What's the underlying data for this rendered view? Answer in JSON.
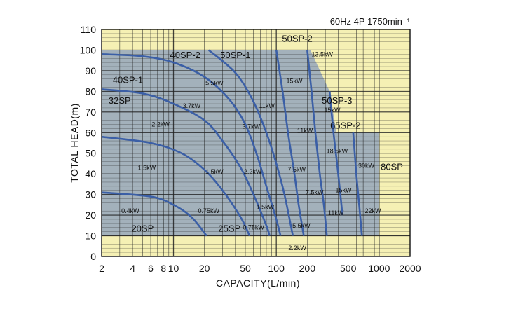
{
  "chart_data": {
    "type": "line",
    "title": "60Hz 4P 1750min⁻¹",
    "xlabel": "CAPACITY(L/min)",
    "ylabel": "TOTAL HEAD(m)",
    "x_scale": "log",
    "xlim": [
      2,
      2000
    ],
    "ylim": [
      0,
      110
    ],
    "x_ticks": [
      2,
      4,
      6,
      8,
      10,
      20,
      50,
      100,
      200,
      500,
      1000,
      2000
    ],
    "x_tick_labels": [
      "2",
      "4",
      "6",
      "8",
      "10",
      "20",
      "50",
      "100",
      "200",
      "500",
      "1000",
      "2000"
    ],
    "y_ticks": [
      0,
      10,
      20,
      30,
      40,
      50,
      60,
      70,
      80,
      90,
      100,
      110
    ],
    "grid": true,
    "colors": {
      "background": "#f5f0b4",
      "operating_region": "#a3b1bb",
      "curve": "#3b5fa6",
      "grid": "#222222"
    },
    "operating_region": [
      {
        "x": 2,
        "y": 100
      },
      {
        "x": 215,
        "y": 100
      },
      {
        "x": 330,
        "y": 80
      },
      {
        "x": 385,
        "y": 60
      },
      {
        "x": 1000,
        "y": 60
      },
      {
        "x": 1000,
        "y": 10
      },
      {
        "x": 2,
        "y": 10
      }
    ],
    "series": [
      {
        "name": "20SP",
        "points": [
          {
            "x": 2,
            "y": 31
          },
          {
            "x": 6,
            "y": 29
          },
          {
            "x": 10,
            "y": 25
          },
          {
            "x": 15,
            "y": 19
          },
          {
            "x": 21,
            "y": 10
          }
        ]
      },
      {
        "name": "32SP",
        "points": [
          {
            "x": 2,
            "y": 58
          },
          {
            "x": 6,
            "y": 55
          },
          {
            "x": 12,
            "y": 50
          },
          {
            "x": 20,
            "y": 42
          },
          {
            "x": 30,
            "y": 32
          },
          {
            "x": 45,
            "y": 19
          },
          {
            "x": 55,
            "y": 10
          }
        ]
      },
      {
        "name": "40SP-1",
        "points": [
          {
            "x": 2,
            "y": 81
          },
          {
            "x": 5,
            "y": 79
          },
          {
            "x": 10,
            "y": 74
          },
          {
            "x": 20,
            "y": 66
          },
          {
            "x": 30,
            "y": 56
          },
          {
            "x": 45,
            "y": 43
          },
          {
            "x": 60,
            "y": 30
          },
          {
            "x": 80,
            "y": 15
          },
          {
            "x": 86,
            "y": 10
          }
        ]
      },
      {
        "name": "40SP-2",
        "points": [
          {
            "x": 2,
            "y": 98
          },
          {
            "x": 5,
            "y": 97
          },
          {
            "x": 10,
            "y": 94
          },
          {
            "x": 20,
            "y": 87
          },
          {
            "x": 35,
            "y": 76
          },
          {
            "x": 50,
            "y": 64
          },
          {
            "x": 65,
            "y": 49
          },
          {
            "x": 80,
            "y": 34
          },
          {
            "x": 100,
            "y": 18
          },
          {
            "x": 110,
            "y": 10
          }
        ]
      },
      {
        "name": "50SP-1",
        "points": [
          {
            "x": 22,
            "y": 100
          },
          {
            "x": 40,
            "y": 89
          },
          {
            "x": 60,
            "y": 75
          },
          {
            "x": 80,
            "y": 60
          },
          {
            "x": 100,
            "y": 45
          },
          {
            "x": 120,
            "y": 30
          },
          {
            "x": 145,
            "y": 10
          }
        ]
      },
      {
        "name": "50SP-2",
        "points": [
          {
            "x": 100,
            "y": 100
          },
          {
            "x": 115,
            "y": 80
          },
          {
            "x": 130,
            "y": 60
          },
          {
            "x": 150,
            "y": 40
          },
          {
            "x": 165,
            "y": 25
          },
          {
            "x": 185,
            "y": 10
          }
        ]
      },
      {
        "name": "50SP-3",
        "points": [
          {
            "x": 200,
            "y": 100
          },
          {
            "x": 220,
            "y": 80
          },
          {
            "x": 240,
            "y": 60
          },
          {
            "x": 265,
            "y": 40
          },
          {
            "x": 290,
            "y": 25
          },
          {
            "x": 310,
            "y": 10
          }
        ]
      },
      {
        "name": "65SP-2",
        "points": [
          {
            "x": 330,
            "y": 80
          },
          {
            "x": 360,
            "y": 60
          },
          {
            "x": 390,
            "y": 45
          },
          {
            "x": 420,
            "y": 30
          },
          {
            "x": 440,
            "y": 20
          }
        ]
      },
      {
        "name": "80SP",
        "points": [
          {
            "x": 560,
            "y": 60
          },
          {
            "x": 600,
            "y": 40
          },
          {
            "x": 640,
            "y": 25
          },
          {
            "x": 680,
            "y": 10
          }
        ]
      }
    ],
    "series_labels": [
      {
        "text": "20SP",
        "x": 5.0,
        "y": 12
      },
      {
        "text": "25SP",
        "x": 35,
        "y": 12
      },
      {
        "text": "32SP",
        "x": 3.0,
        "y": 74
      },
      {
        "text": "40SP-1",
        "x": 3.6,
        "y": 84
      },
      {
        "text": "40SP-2",
        "x": 13,
        "y": 96
      },
      {
        "text": "50SP-1",
        "x": 40,
        "y": 96
      },
      {
        "text": "50SP-2",
        "x": 160,
        "y": 104
      },
      {
        "text": "50SP-3",
        "x": 390,
        "y": 74
      },
      {
        "text": "65SP-2",
        "x": 470,
        "y": 62
      },
      {
        "text": "80SP",
        "x": 1330,
        "y": 42
      }
    ],
    "power_labels": [
      {
        "text": "0.4kW",
        "x": 3.8,
        "y": 21
      },
      {
        "text": "1.5kW",
        "x": 5.5,
        "y": 42
      },
      {
        "text": "2.2kW",
        "x": 7.5,
        "y": 63
      },
      {
        "text": "3.7kW",
        "x": 15,
        "y": 72
      },
      {
        "text": "5.5kW",
        "x": 25,
        "y": 83
      },
      {
        "text": "0.75kW",
        "x": 22,
        "y": 21
      },
      {
        "text": "1.5kW",
        "x": 25,
        "y": 40
      },
      {
        "text": "0.75kW",
        "x": 60,
        "y": 13
      },
      {
        "text": "2.2kW",
        "x": 59,
        "y": 40
      },
      {
        "text": "1.5kW",
        "x": 78,
        "y": 23
      },
      {
        "text": "3.7kW",
        "x": 57,
        "y": 62
      },
      {
        "text": "11kW",
        "x": 81,
        "y": 72
      },
      {
        "text": "15kW",
        "x": 150,
        "y": 84
      },
      {
        "text": "13.5kW",
        "x": 280,
        "y": 97
      },
      {
        "text": "11kW",
        "x": 190,
        "y": 60
      },
      {
        "text": "7.5kW",
        "x": 158,
        "y": 41
      },
      {
        "text": "7.5kW",
        "x": 235,
        "y": 30
      },
      {
        "text": "5.5kW",
        "x": 175,
        "y": 14
      },
      {
        "text": "2.2kW",
        "x": 160,
        "y": 3
      },
      {
        "text": "15kW",
        "x": 350,
        "y": 70
      },
      {
        "text": "18.5kW",
        "x": 390,
        "y": 50
      },
      {
        "text": "30kW",
        "x": 750,
        "y": 43
      },
      {
        "text": "15kW",
        "x": 450,
        "y": 31
      },
      {
        "text": "11kW",
        "x": 380,
        "y": 20
      },
      {
        "text": "22kW",
        "x": 870,
        "y": 21
      }
    ]
  }
}
